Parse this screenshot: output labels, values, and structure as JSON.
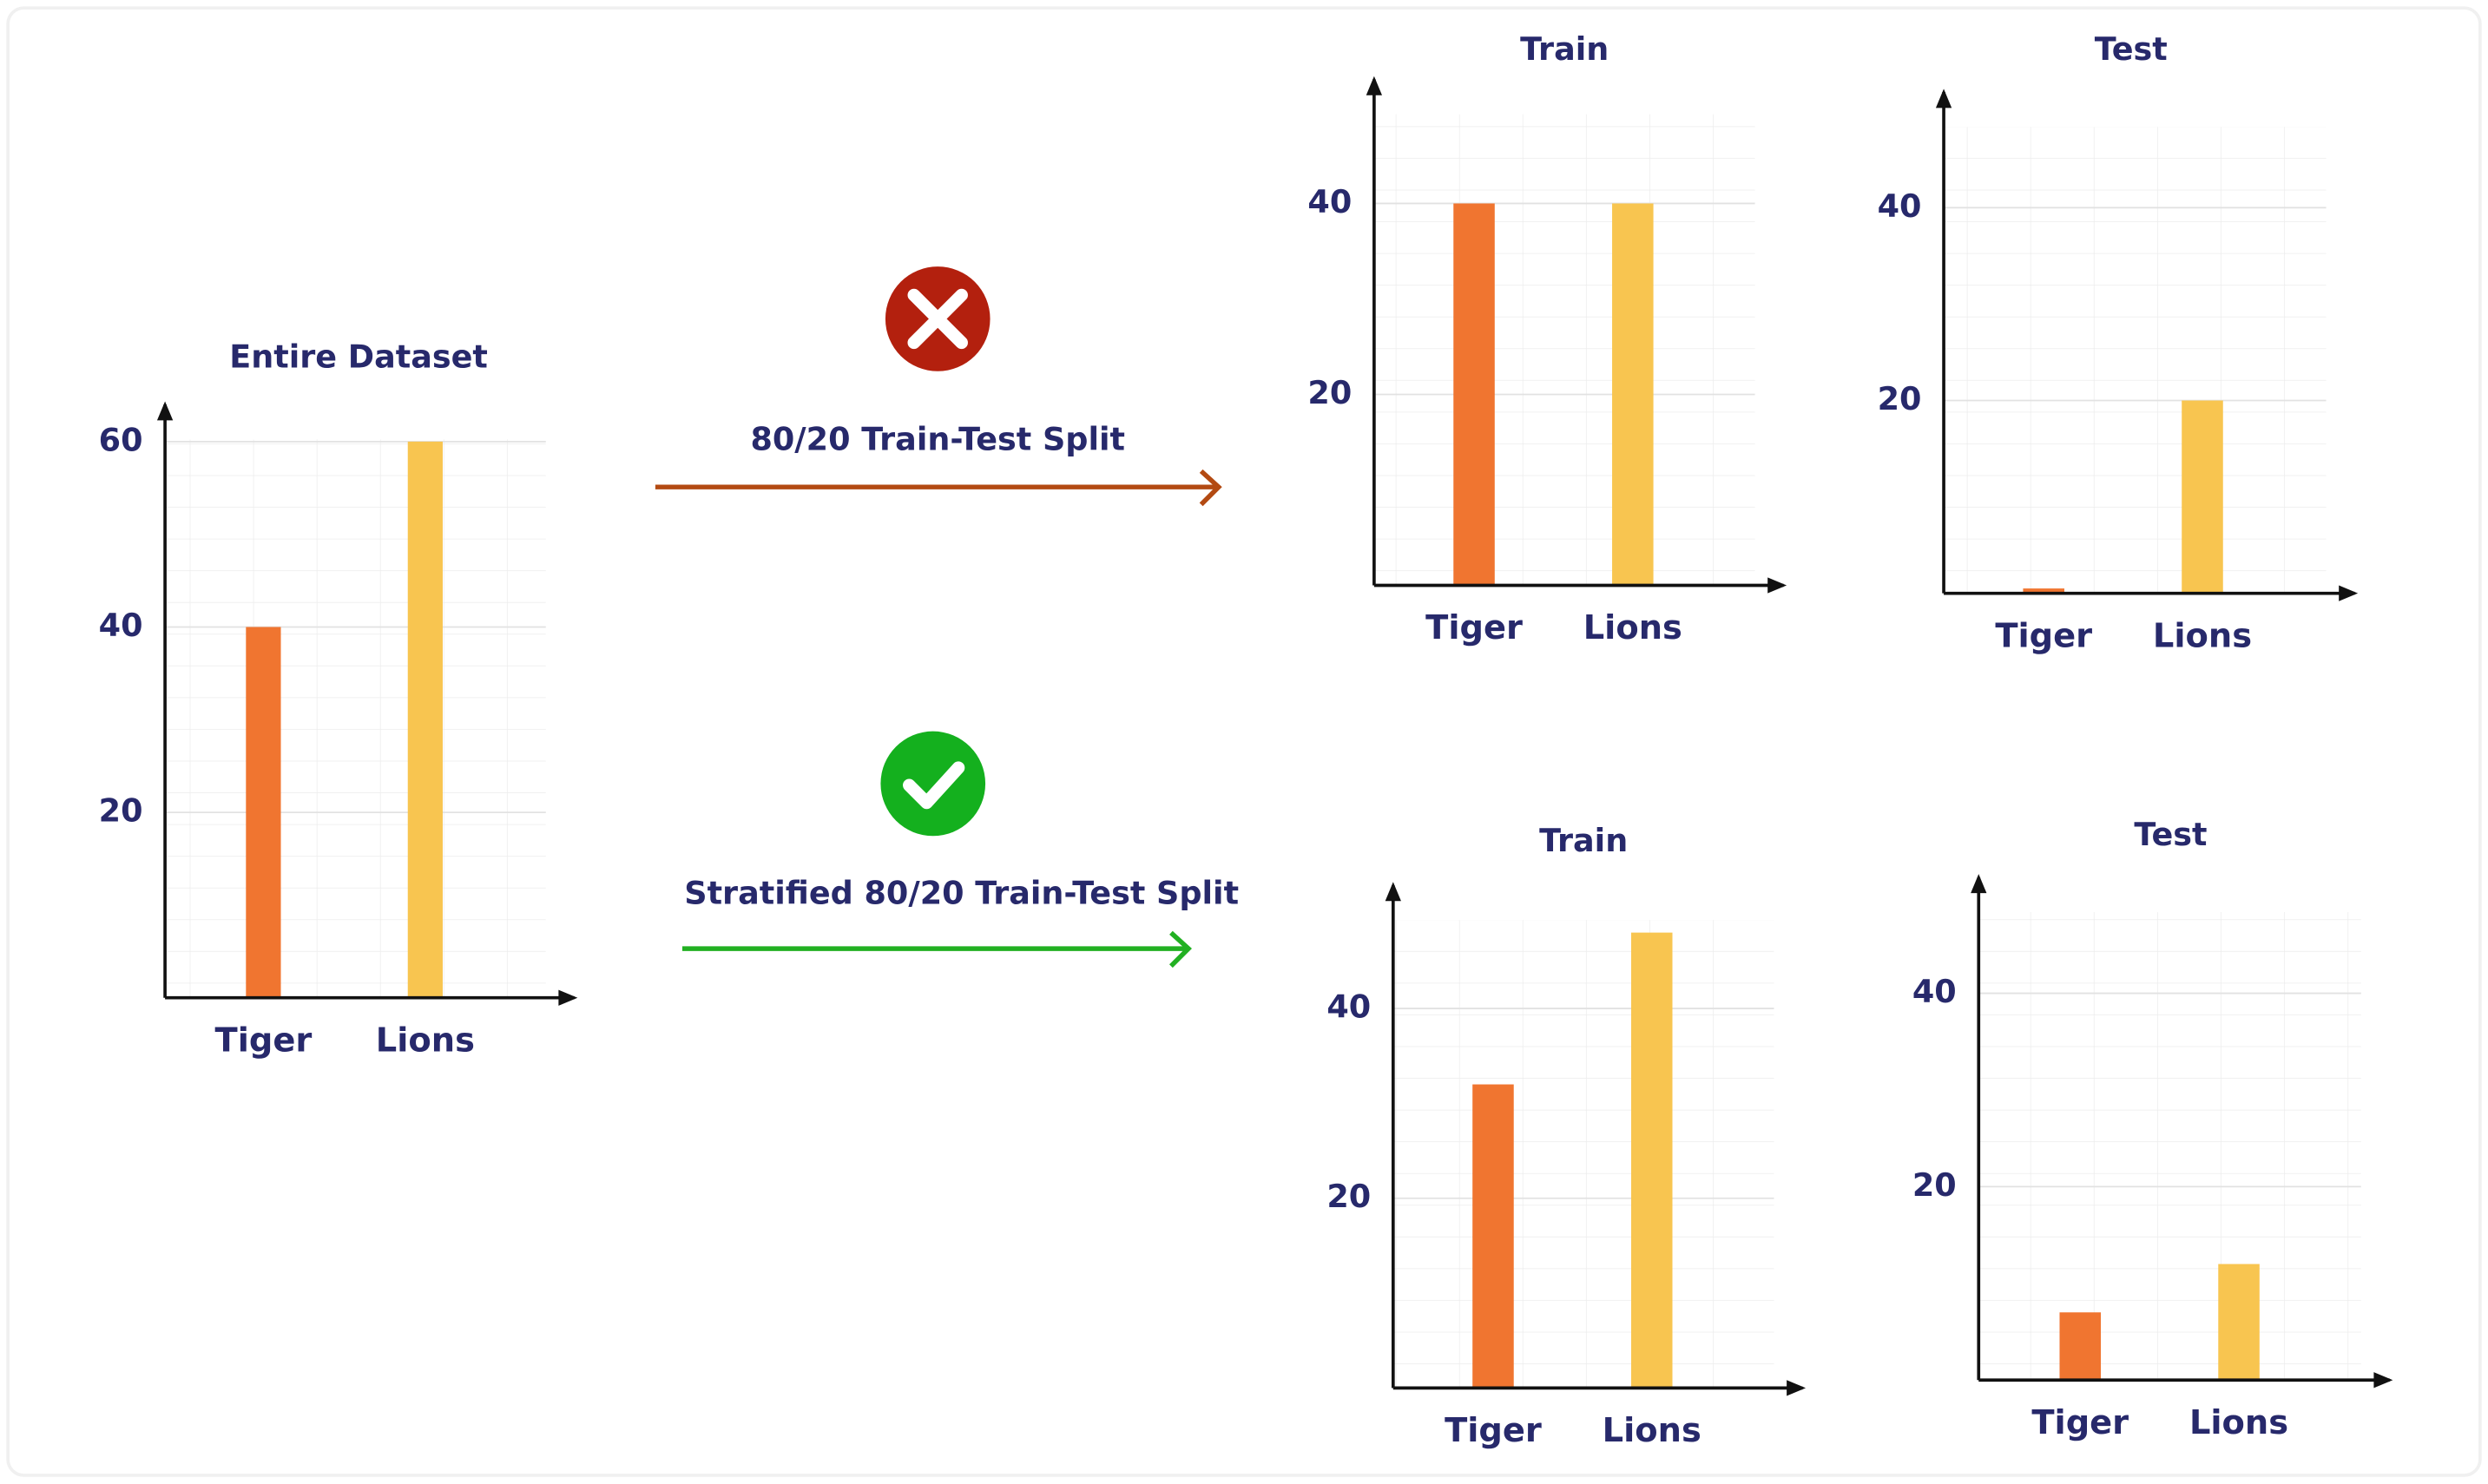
{
  "chart_data": [
    {
      "type": "bar",
      "title": "Entire Dataset",
      "categories": [
        "Tiger",
        "Lions"
      ],
      "values": [
        40,
        60
      ],
      "colors": [
        "#f07530",
        "#f8c550"
      ],
      "ylim": [
        0,
        64
      ],
      "yticks": [
        20,
        40,
        60
      ],
      "grid": true
    },
    {
      "type": "bar",
      "title": "Train",
      "categories": [
        "Tiger",
        "Lions"
      ],
      "values": [
        40,
        40
      ],
      "colors": [
        "#f07530",
        "#f8c550"
      ],
      "ylim": [
        0,
        53
      ],
      "yticks": [
        20,
        40
      ],
      "grid": true
    },
    {
      "type": "bar",
      "title": "Test",
      "categories": [
        "Tiger",
        "Lions"
      ],
      "values": [
        0.5,
        20
      ],
      "colors": [
        "#f07530",
        "#f8c550"
      ],
      "ylim": [
        0,
        52
      ],
      "yticks": [
        20,
        40
      ],
      "grid": true
    },
    {
      "type": "bar",
      "title": "Train",
      "categories": [
        "Tiger",
        "Lions"
      ],
      "values": [
        32,
        48
      ],
      "colors": [
        "#f07530",
        "#f8c550"
      ],
      "ylim": [
        0,
        53
      ],
      "yticks": [
        20,
        40
      ],
      "grid": true
    },
    {
      "type": "bar",
      "title": "Test",
      "categories": [
        "Tiger",
        "Lions"
      ],
      "values": [
        7,
        12
      ],
      "colors": [
        "#f07530",
        "#f8c550"
      ],
      "ylim": [
        0,
        52
      ],
      "yticks": [
        20,
        40
      ],
      "grid": true
    }
  ],
  "annotations": [
    {
      "label": "80/20 Train-Test Split"
    },
    {
      "label": "Stratified 80/20 Train-Test Split"
    }
  ]
}
